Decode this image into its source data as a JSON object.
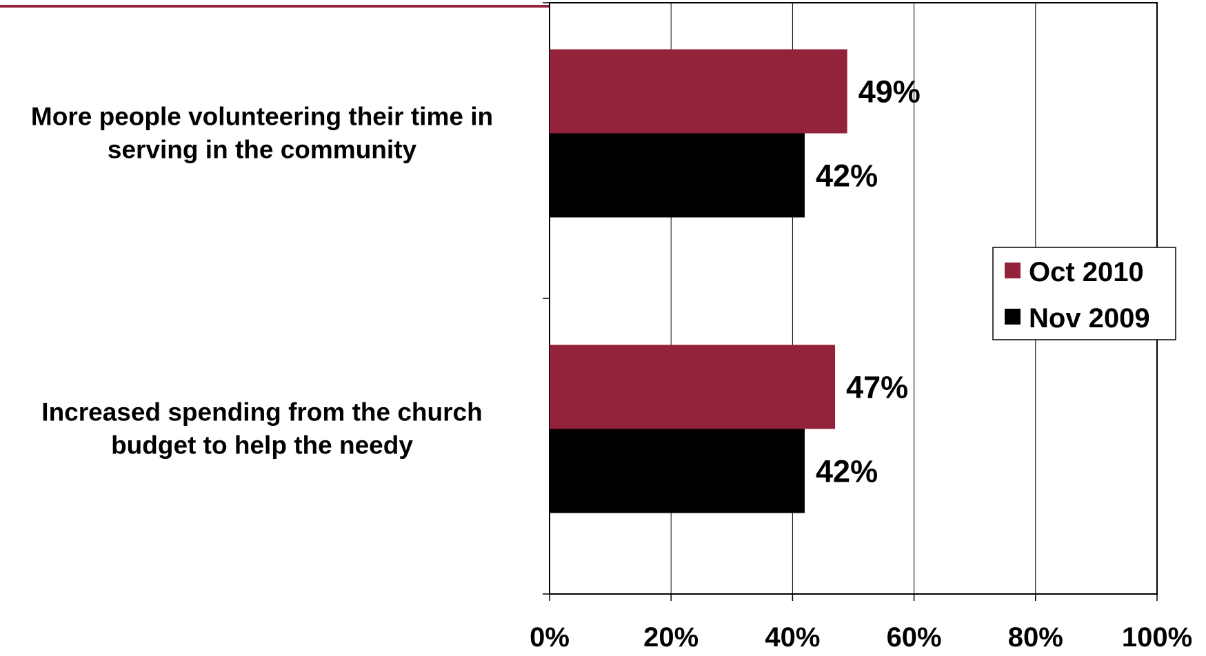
{
  "chart_data": {
    "type": "bar",
    "orientation": "horizontal",
    "categories": [
      [
        "More people volunteering their time in",
        "serving in the community"
      ],
      [
        "Increased spending from the church",
        "budget to help the needy"
      ]
    ],
    "series": [
      {
        "name": "Oct 2010",
        "values": [
          49,
          47
        ],
        "labels": [
          "49%",
          "47%"
        ],
        "color": "#92233a"
      },
      {
        "name": "Nov 2009",
        "values": [
          42,
          42
        ],
        "labels": [
          "42%",
          "42%"
        ],
        "color": "#000000"
      }
    ],
    "x_ticks": [
      "0%",
      "20%",
      "40%",
      "60%",
      "80%",
      "100%"
    ],
    "xlim": [
      0,
      100
    ],
    "grid": true,
    "legend_position": "right",
    "accent_color": "#92233a"
  }
}
